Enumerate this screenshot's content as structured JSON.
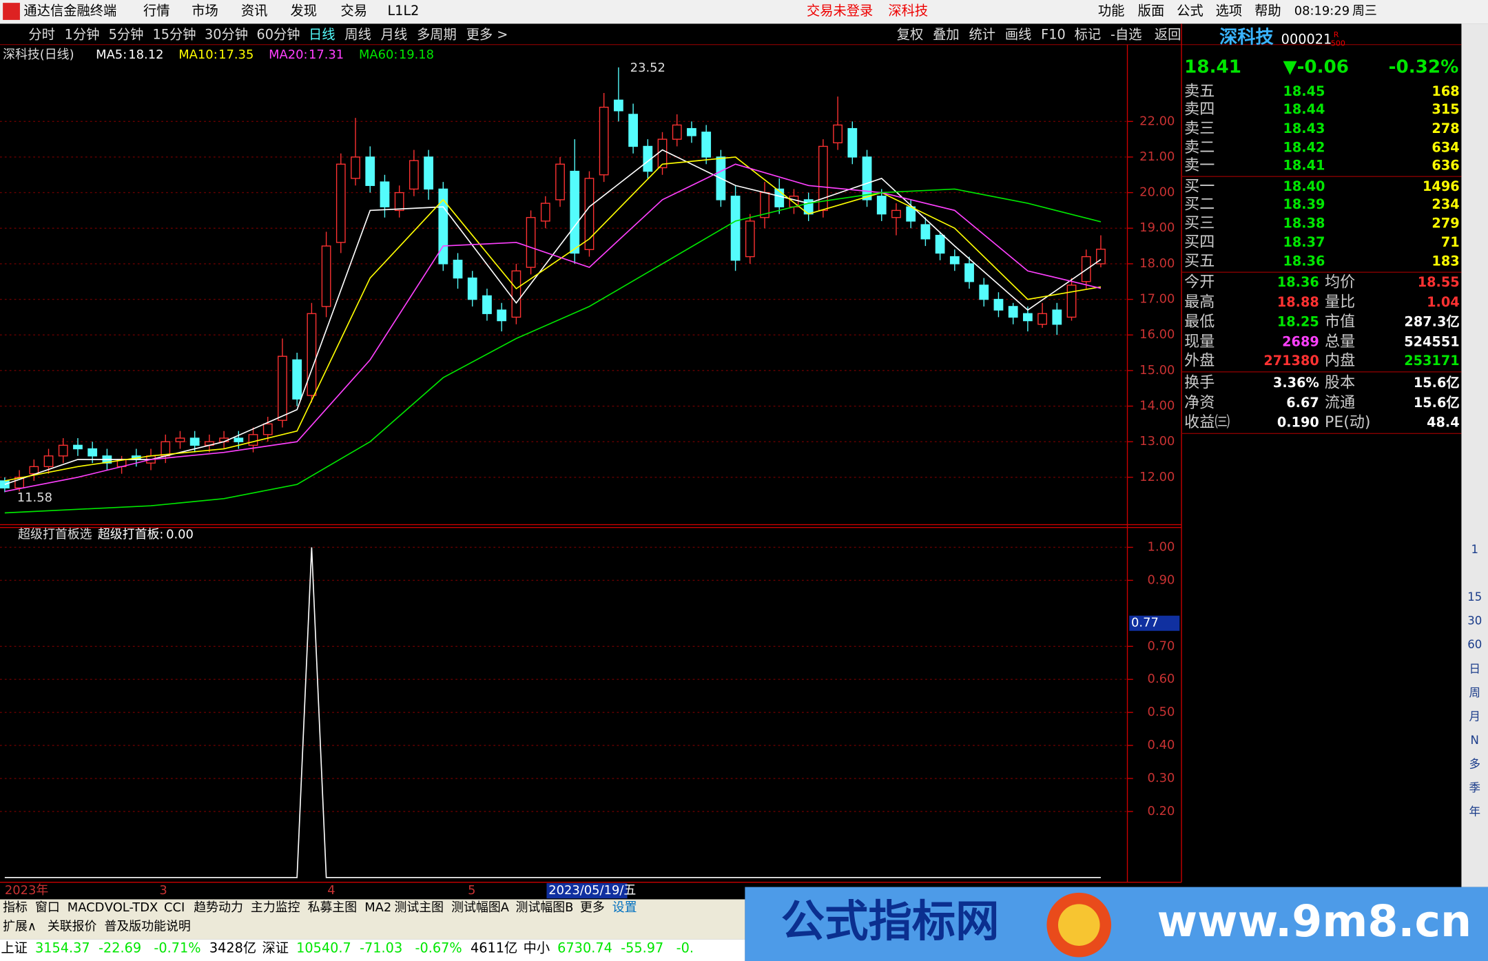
{
  "menu": {
    "app": "通达信金融终端",
    "items": [
      "行情",
      "市场",
      "资讯",
      "发现",
      "交易",
      "L1L2"
    ],
    "status": [
      "交易未登录",
      "深科技"
    ],
    "right": [
      "功能",
      "版面",
      "公式",
      "选项",
      "帮助"
    ],
    "clock": "08:19:29",
    "weekday": "周三"
  },
  "toolbar": {
    "left": [
      "分时",
      "1分钟",
      "5分钟",
      "15分钟",
      "30分钟",
      "60分钟",
      "日线",
      "周线",
      "月线",
      "多周期",
      "更多 >"
    ],
    "right": [
      "复权",
      "叠加",
      "统计",
      "画线",
      "F10",
      "标记",
      "-自选",
      "返回"
    ]
  },
  "quote": {
    "name": "深科技",
    "code": "000021",
    "badge_top": "R",
    "badge_bottom": "500",
    "price": "18.41",
    "change": "▼-0.06",
    "pct": "-0.32%",
    "book": [
      [
        "卖五",
        "18.45",
        "168"
      ],
      [
        "卖四",
        "18.44",
        "315"
      ],
      [
        "卖三",
        "18.43",
        "278"
      ],
      [
        "卖二",
        "18.42",
        "634"
      ],
      [
        "卖一",
        "18.41",
        "636"
      ],
      [
        "买一",
        "18.40",
        "1496"
      ],
      [
        "买二",
        "18.39",
        "234"
      ],
      [
        "买三",
        "18.38",
        "279"
      ],
      [
        "买四",
        "18.37",
        "71"
      ],
      [
        "买五",
        "18.36",
        "183"
      ]
    ],
    "stats": [
      [
        "今开",
        "18.36",
        "均价",
        "18.55"
      ],
      [
        "最高",
        "18.88",
        "量比",
        "1.04"
      ],
      [
        "最低",
        "18.25",
        "市值",
        "287.3亿"
      ],
      [
        "现量",
        "2689",
        "总量",
        "524551"
      ],
      [
        "外盘",
        "271380",
        "内盘",
        "253171"
      ],
      [
        "换手",
        "3.36%",
        "股本",
        "15.6亿"
      ],
      [
        "净资",
        "6.67",
        "流通",
        "15.6亿"
      ],
      [
        "收益㈢",
        "0.190",
        "PE(动)",
        "48.4"
      ]
    ]
  },
  "tabs": [
    "指标",
    "窗口",
    "MACD",
    "VOL-TDX",
    "CCI",
    "趋势动力",
    "主力监控",
    "私募主图",
    "MA2",
    "测试主图",
    "测试幅图A",
    "测试幅图B",
    "更多",
    "设置"
  ],
  "tabs2": [
    "扩展∧",
    "关联报价",
    "普及版功能说明"
  ],
  "status": [
    "上证",
    "3154.37",
    "-22.69",
    "-0.71%",
    "3428亿",
    "深证",
    "10540.7",
    "-71.03",
    "-0.67%",
    "4611亿",
    "中小",
    "6730.74",
    "-55.97",
    "-0."
  ],
  "side_icons": [
    "1",
    "15",
    "30",
    "60",
    "日",
    "周",
    "月",
    "N",
    "多",
    "季",
    "年"
  ],
  "watermark": {
    "name": "公式指标网",
    "url": "www.9m8.cn"
  },
  "chart_data": [
    {
      "type": "candlestick",
      "title": "深科技(日线)",
      "up_color": "#ff3232",
      "down_color": "#54fcfc",
      "open": [
        11.9,
        11.7,
        12.1,
        12.3,
        12.6,
        12.9,
        12.8,
        12.6,
        12.3,
        12.6,
        12.4,
        12.6,
        13.0,
        13.1,
        12.9,
        13.0,
        13.1,
        12.9,
        13.2,
        13.6,
        15.3,
        14.3,
        16.8,
        18.6,
        20.4,
        21.0,
        20.3,
        19.5,
        20.1,
        21.0,
        20.1,
        18.1,
        17.6,
        17.1,
        16.7,
        16.5,
        17.9,
        19.2,
        19.8,
        20.6,
        18.4,
        20.5,
        22.6,
        22.2,
        21.3,
        20.7,
        21.5,
        21.8,
        21.7,
        21.0,
        19.9,
        18.2,
        19.3,
        20.1,
        19.6,
        19.8,
        19.5,
        21.4,
        21.8,
        21.0,
        19.9,
        19.3,
        19.6,
        19.1,
        18.8,
        18.2,
        18.0,
        17.4,
        17.0,
        16.8,
        16.6,
        16.3,
        16.7,
        16.5,
        17.5,
        18.0
      ],
      "high": [
        12.0,
        12.2,
        12.5,
        12.8,
        13.1,
        13.1,
        13.0,
        12.8,
        12.6,
        12.8,
        12.8,
        13.2,
        13.3,
        13.3,
        13.2,
        13.3,
        13.3,
        13.4,
        13.7,
        15.9,
        15.5,
        16.9,
        18.9,
        21.1,
        22.1,
        21.3,
        20.5,
        20.2,
        21.2,
        21.2,
        20.3,
        18.3,
        17.8,
        17.3,
        16.9,
        18.0,
        19.5,
        19.9,
        21.0,
        21.5,
        20.6,
        22.8,
        23.52,
        22.5,
        21.5,
        21.7,
        22.2,
        22.0,
        21.9,
        21.2,
        20.2,
        19.4,
        20.3,
        20.4,
        20.1,
        20.0,
        21.5,
        22.7,
        22.0,
        21.2,
        20.1,
        19.7,
        19.8,
        19.3,
        18.9,
        18.4,
        18.2,
        17.6,
        17.2,
        16.9,
        16.8,
        16.9,
        16.9,
        17.6,
        18.4,
        18.8
      ],
      "low": [
        11.58,
        11.6,
        11.9,
        12.1,
        12.4,
        12.6,
        12.4,
        12.2,
        12.1,
        12.3,
        12.2,
        12.4,
        12.8,
        12.7,
        12.7,
        12.8,
        12.8,
        12.7,
        13.0,
        13.4,
        14.0,
        14.1,
        16.5,
        18.3,
        20.2,
        20.0,
        19.3,
        19.3,
        19.9,
        19.8,
        17.8,
        17.3,
        16.8,
        16.4,
        16.1,
        16.3,
        17.7,
        19.0,
        19.6,
        18.0,
        18.2,
        20.3,
        22.0,
        21.1,
        20.4,
        20.5,
        21.3,
        21.4,
        20.8,
        19.6,
        17.8,
        18.0,
        19.0,
        19.4,
        19.4,
        19.2,
        19.3,
        21.2,
        20.8,
        19.6,
        19.2,
        18.8,
        19.0,
        18.5,
        18.1,
        17.8,
        17.3,
        16.8,
        16.5,
        16.3,
        16.1,
        16.2,
        16.0,
        16.4,
        17.3,
        17.9
      ],
      "close": [
        11.7,
        12.0,
        12.3,
        12.6,
        12.9,
        12.8,
        12.6,
        12.4,
        12.5,
        12.5,
        12.6,
        13.0,
        13.1,
        12.9,
        13.0,
        13.1,
        13.0,
        13.2,
        13.5,
        15.4,
        14.2,
        16.6,
        18.5,
        20.8,
        21.0,
        20.2,
        19.6,
        20.0,
        20.9,
        20.1,
        18.0,
        17.6,
        17.0,
        16.6,
        16.4,
        17.8,
        19.3,
        19.7,
        20.8,
        18.3,
        20.4,
        22.4,
        22.3,
        21.3,
        20.6,
        21.5,
        21.9,
        21.6,
        21.0,
        19.8,
        18.1,
        19.2,
        20.0,
        19.6,
        19.9,
        19.4,
        21.3,
        21.9,
        21.0,
        19.8,
        19.4,
        19.5,
        19.2,
        18.7,
        18.3,
        18.0,
        17.5,
        17.0,
        16.7,
        16.5,
        16.4,
        16.6,
        16.3,
        17.4,
        18.2,
        18.41
      ],
      "series": [
        {
          "name": "MA5:",
          "color": "#ffffff",
          "x": [
            0,
            5,
            10,
            15,
            20,
            25,
            30,
            35,
            40,
            45,
            50,
            55,
            60,
            65,
            70,
            75
          ],
          "values": [
            11.8,
            12.5,
            12.5,
            13.0,
            13.9,
            19.5,
            19.6,
            16.9,
            19.6,
            21.2,
            20.2,
            19.7,
            20.4,
            18.5,
            16.7,
            18.12
          ]
        },
        {
          "name": "MA10:",
          "color": "#ffff00",
          "x": [
            0,
            5,
            10,
            15,
            20,
            25,
            30,
            35,
            40,
            45,
            50,
            55,
            60,
            65,
            70,
            75
          ],
          "values": [
            11.9,
            12.3,
            12.6,
            12.8,
            13.3,
            17.6,
            19.8,
            17.3,
            18.7,
            20.8,
            21.0,
            19.4,
            20.0,
            19.0,
            17.0,
            17.35
          ]
        },
        {
          "name": "MA20:",
          "color": "#ff40ff",
          "x": [
            0,
            5,
            10,
            15,
            20,
            25,
            30,
            35,
            40,
            45,
            50,
            55,
            60,
            65,
            70,
            75
          ],
          "values": [
            11.6,
            12.0,
            12.5,
            12.7,
            13.0,
            15.3,
            18.5,
            18.6,
            17.9,
            19.8,
            20.8,
            20.2,
            20.0,
            19.5,
            17.8,
            17.31
          ]
        },
        {
          "name": "MA60:",
          "color": "#00e600",
          "x": [
            0,
            5,
            10,
            15,
            20,
            25,
            30,
            35,
            40,
            45,
            50,
            55,
            60,
            65,
            70,
            75
          ],
          "values": [
            11.0,
            11.1,
            11.2,
            11.4,
            11.8,
            13.0,
            14.8,
            15.9,
            16.8,
            18.0,
            19.2,
            19.7,
            20.0,
            20.1,
            19.7,
            19.18
          ]
        }
      ],
      "ylim": [
        10.67,
        24.08
      ],
      "yticks": [
        {
          "value": 12,
          "label": "12.00"
        },
        {
          "value": 13,
          "label": "13.00"
        },
        {
          "value": 14,
          "label": "14.00"
        },
        {
          "value": 15,
          "label": "15.00"
        },
        {
          "value": 16,
          "label": "16.00"
        },
        {
          "value": 17,
          "label": "17.00"
        },
        {
          "value": 18,
          "label": "18.00"
        },
        {
          "value": 19,
          "label": "19.00"
        },
        {
          "value": 20,
          "label": "20.00"
        },
        {
          "value": 21,
          "label": "21.00"
        },
        {
          "value": 22,
          "label": "22.00"
        }
      ],
      "grid": true,
      "x_labels": [
        "2023年",
        "3",
        "4",
        "5"
      ],
      "cursor_x_label": "2023/05/19/五"
    },
    {
      "type": "line",
      "title": "超级打首板选",
      "series": [
        {
          "name": "超级打首板:",
          "color": "#ffffff",
          "values": [
            0,
            0,
            0,
            0,
            0,
            0,
            0,
            0,
            0,
            0,
            0,
            0,
            0,
            0,
            0,
            0,
            0,
            0,
            0,
            0,
            0,
            1,
            0,
            0,
            0,
            0,
            0,
            0,
            0,
            0,
            0,
            0,
            0,
            0,
            0,
            0,
            0,
            0,
            0,
            0,
            0,
            0,
            0,
            0,
            0,
            0,
            0,
            0,
            0,
            0,
            0,
            0,
            0,
            0,
            0,
            0,
            0,
            0,
            0,
            0,
            0,
            0,
            0,
            0,
            0,
            0,
            0,
            0,
            0,
            0,
            0,
            0,
            0,
            0,
            0,
            0
          ],
          "last_value_label": "0.00"
        }
      ],
      "ylim": [
        0,
        1.063
      ],
      "yticks": [
        {
          "value": 1,
          "label": "1.00"
        },
        {
          "value": 0.9,
          "label": "0.90"
        },
        {
          "value": 0.7,
          "label": "0.70"
        },
        {
          "value": 0.6,
          "label": "0.60"
        },
        {
          "value": 0.5,
          "label": "0.50"
        },
        {
          "value": 0.4,
          "label": "0.40"
        },
        {
          "value": 0.3,
          "label": "0.30"
        },
        {
          "value": 0.2,
          "label": "0.20"
        }
      ],
      "grid": true,
      "cursor": 0.77
    }
  ]
}
